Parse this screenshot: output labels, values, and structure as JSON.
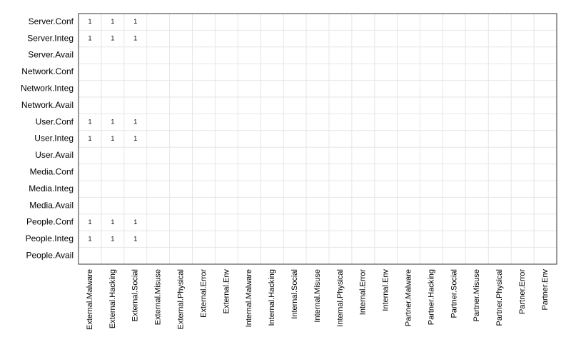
{
  "chart_data": {
    "type": "heatmap",
    "x_categories": [
      "External.Malware",
      "External.Hacking",
      "External.Social",
      "External.Misuse",
      "External.Physical",
      "External.Error",
      "External.Env",
      "Internal.Malware",
      "Internal.Hacking",
      "Internal.Social",
      "Internal.Misuse",
      "Internal.Physical",
      "Internal.Error",
      "Internal.Env",
      "Partner.Malware",
      "Partner.Hacking",
      "Partner.Social",
      "Partner.Misuse",
      "Partner.Physical",
      "Partner.Error",
      "Partner.Env"
    ],
    "y_categories": [
      "Server.Conf",
      "Server.Integ",
      "Server.Avail",
      "Network.Conf",
      "Network.Integ",
      "Network.Avail",
      "User.Conf",
      "User.Integ",
      "User.Avail",
      "Media.Conf",
      "Media.Integ",
      "Media.Avail",
      "People.Conf",
      "People.Integ",
      "People.Avail"
    ],
    "values": [
      [
        1,
        1,
        1,
        null,
        null,
        null,
        null,
        null,
        null,
        null,
        null,
        null,
        null,
        null,
        null,
        null,
        null,
        null,
        null,
        null,
        null
      ],
      [
        1,
        1,
        1,
        null,
        null,
        null,
        null,
        null,
        null,
        null,
        null,
        null,
        null,
        null,
        null,
        null,
        null,
        null,
        null,
        null,
        null
      ],
      [
        null,
        null,
        null,
        null,
        null,
        null,
        null,
        null,
        null,
        null,
        null,
        null,
        null,
        null,
        null,
        null,
        null,
        null,
        null,
        null,
        null
      ],
      [
        null,
        null,
        null,
        null,
        null,
        null,
        null,
        null,
        null,
        null,
        null,
        null,
        null,
        null,
        null,
        null,
        null,
        null,
        null,
        null,
        null
      ],
      [
        null,
        null,
        null,
        null,
        null,
        null,
        null,
        null,
        null,
        null,
        null,
        null,
        null,
        null,
        null,
        null,
        null,
        null,
        null,
        null,
        null
      ],
      [
        null,
        null,
        null,
        null,
        null,
        null,
        null,
        null,
        null,
        null,
        null,
        null,
        null,
        null,
        null,
        null,
        null,
        null,
        null,
        null,
        null
      ],
      [
        1,
        1,
        1,
        null,
        null,
        null,
        null,
        null,
        null,
        null,
        null,
        null,
        null,
        null,
        null,
        null,
        null,
        null,
        null,
        null,
        null
      ],
      [
        1,
        1,
        1,
        null,
        null,
        null,
        null,
        null,
        null,
        null,
        null,
        null,
        null,
        null,
        null,
        null,
        null,
        null,
        null,
        null,
        null
      ],
      [
        null,
        null,
        null,
        null,
        null,
        null,
        null,
        null,
        null,
        null,
        null,
        null,
        null,
        null,
        null,
        null,
        null,
        null,
        null,
        null,
        null
      ],
      [
        null,
        null,
        null,
        null,
        null,
        null,
        null,
        null,
        null,
        null,
        null,
        null,
        null,
        null,
        null,
        null,
        null,
        null,
        null,
        null,
        null
      ],
      [
        null,
        null,
        null,
        null,
        null,
        null,
        null,
        null,
        null,
        null,
        null,
        null,
        null,
        null,
        null,
        null,
        null,
        null,
        null,
        null,
        null
      ],
      [
        null,
        null,
        null,
        null,
        null,
        null,
        null,
        null,
        null,
        null,
        null,
        null,
        null,
        null,
        null,
        null,
        null,
        null,
        null,
        null,
        null
      ],
      [
        1,
        1,
        1,
        null,
        null,
        null,
        null,
        null,
        null,
        null,
        null,
        null,
        null,
        null,
        null,
        null,
        null,
        null,
        null,
        null,
        null
      ],
      [
        1,
        1,
        1,
        null,
        null,
        null,
        null,
        null,
        null,
        null,
        null,
        null,
        null,
        null,
        null,
        null,
        null,
        null,
        null,
        null,
        null
      ],
      [
        null,
        null,
        null,
        null,
        null,
        null,
        null,
        null,
        null,
        null,
        null,
        null,
        null,
        null,
        null,
        null,
        null,
        null,
        null,
        null,
        null
      ]
    ],
    "color": "#ffffff",
    "grid": true
  }
}
